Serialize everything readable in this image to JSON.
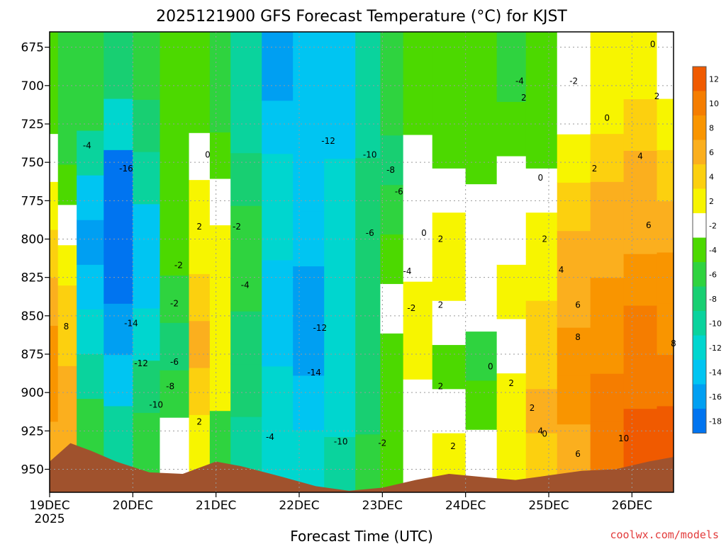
{
  "chart_data": {
    "type": "heatmap",
    "title": "2025121900 GFS Forecast Temperature (°C) for KJST",
    "xlabel": "Forecast Time (UTC)",
    "ylabel": "",
    "x_ticks": [
      "19DEC",
      "20DEC",
      "21DEC",
      "22DEC",
      "23DEC",
      "24DEC",
      "25DEC",
      "26DEC"
    ],
    "x_year": "2025",
    "y_ticks": [
      675,
      700,
      725,
      750,
      775,
      800,
      825,
      850,
      875,
      900,
      925,
      950
    ],
    "ylim": [
      965,
      665
    ],
    "xlim_days": [
      0,
      7.5
    ],
    "grid": true,
    "colorbar": {
      "labels": [
        "12",
        "10",
        "8",
        "6",
        "4",
        "2",
        "-2",
        "-4",
        "-6",
        "-8",
        "-10",
        "-12",
        "-14",
        "-16",
        "-18"
      ],
      "colors": [
        "#f05a00",
        "#f57d00",
        "#f99500",
        "#fbaf1e",
        "#fcd00f",
        "#f7f500",
        "#ffffff",
        "#4cd900",
        "#2fd33f",
        "#18cf72",
        "#0ad39d",
        "#00d6cf",
        "#00c5f2",
        "#009ff2",
        "#0074f0"
      ]
    },
    "columns": [
      {
        "x": 0.0,
        "bounds": [
          950,
          700
        ],
        "values": [
          6,
          8,
          8,
          6,
          4,
          2,
          0,
          -2
        ]
      },
      {
        "x": 0.2,
        "bounds": [
          935,
          725
        ],
        "values": [
          6,
          6,
          4,
          4,
          2,
          0,
          -2,
          -4
        ]
      },
      {
        "x": 0.45,
        "bounds": [
          933,
          700
        ],
        "values": [
          -4,
          -8,
          -10,
          -12,
          -14,
          -12,
          -8,
          -4
        ]
      },
      {
        "x": 0.85,
        "bounds": [
          942,
          675
        ],
        "values": [
          -8,
          -12,
          -14,
          -16,
          -18,
          -16,
          -10,
          -6
        ]
      },
      {
        "x": 1.15,
        "bounds": [
          947,
          675
        ],
        "values": [
          -4,
          -6,
          -10,
          -12,
          -12,
          -8,
          -6,
          -4
        ]
      },
      {
        "x": 1.5,
        "bounds": [
          947,
          700
        ],
        "values": [
          0,
          -4,
          -6,
          -4,
          -2,
          -2,
          -2,
          -2
        ]
      },
      {
        "x": 1.85,
        "bounds": [
          945,
          700
        ],
        "values": [
          2,
          4,
          6,
          4,
          2,
          2,
          0,
          -2
        ]
      },
      {
        "x": 2.0,
        "bounds": [
          942,
          700
        ],
        "values": [
          -4,
          2,
          2,
          2,
          2,
          0,
          -2,
          -4
        ]
      },
      {
        "x": 2.35,
        "bounds": [
          950,
          675
        ],
        "values": [
          -8,
          -6,
          -6,
          -4,
          -4,
          -6,
          -8,
          -8
        ]
      },
      {
        "x": 2.75,
        "bounds": [
          952,
          675
        ],
        "values": [
          -10,
          -10,
          -12,
          -12,
          -10,
          -10,
          -12,
          -14
        ]
      },
      {
        "x": 3.1,
        "bounds": [
          960,
          675
        ],
        "values": [
          -10,
          -12,
          -14,
          -14,
          -12,
          -12,
          -12,
          -12
        ]
      },
      {
        "x": 3.5,
        "bounds": [
          965,
          675
        ],
        "values": [
          -8,
          -10,
          -10,
          -10,
          -10,
          -10,
          -12,
          -12
        ]
      },
      {
        "x": 3.85,
        "bounds": [
          963,
          675
        ],
        "values": [
          -4,
          -6,
          -6,
          -6,
          -6,
          -6,
          -8,
          -8
        ]
      },
      {
        "x": 4.1,
        "bounds": [
          958,
          700
        ],
        "values": [
          -2,
          -2,
          -2,
          0,
          -2,
          -4,
          -6,
          -4
        ]
      },
      {
        "x": 4.4,
        "bounds": [
          955,
          700
        ],
        "values": [
          0,
          0,
          2,
          2,
          0,
          0,
          0,
          -2
        ]
      },
      {
        "x": 4.8,
        "bounds": [
          955,
          725
        ],
        "values": [
          2,
          0,
          -2,
          0,
          2,
          2,
          0,
          -2
        ]
      },
      {
        "x": 5.2,
        "bounds": [
          956,
          700
        ],
        "values": [
          0,
          -2,
          -4,
          0,
          0,
          0,
          -2,
          -2
        ]
      },
      {
        "x": 5.55,
        "bounds": [
          958,
          675
        ],
        "values": [
          2,
          2,
          0,
          2,
          0,
          0,
          -2,
          -4
        ]
      },
      {
        "x": 5.9,
        "bounds": [
          955,
          725
        ],
        "values": [
          4,
          6,
          4,
          4,
          2,
          2,
          0,
          -2
        ]
      },
      {
        "x": 6.3,
        "bounds": [
          952,
          700
        ],
        "values": [
          6,
          8,
          8,
          6,
          6,
          4,
          2,
          0
        ]
      },
      {
        "x": 6.7,
        "bounds": [
          950,
          700
        ],
        "values": [
          10,
          10,
          8,
          8,
          6,
          6,
          4,
          2
        ]
      },
      {
        "x": 7.1,
        "bounds": [
          944,
          675
        ],
        "values": [
          12,
          10,
          10,
          8,
          6,
          6,
          4,
          2
        ]
      },
      {
        "x": 7.5,
        "bounds": [
          942,
          675
        ],
        "values": [
          12,
          10,
          8,
          8,
          6,
          4,
          2,
          0
        ]
      }
    ],
    "terrain": [
      [
        0.0,
        945
      ],
      [
        0.25,
        933
      ],
      [
        0.5,
        938
      ],
      [
        0.8,
        945
      ],
      [
        1.2,
        952
      ],
      [
        1.6,
        953
      ],
      [
        2.0,
        945
      ],
      [
        2.3,
        948
      ],
      [
        2.8,
        955
      ],
      [
        3.2,
        961
      ],
      [
        3.6,
        964
      ],
      [
        4.0,
        962
      ],
      [
        4.4,
        957
      ],
      [
        4.8,
        953
      ],
      [
        5.2,
        955
      ],
      [
        5.6,
        957
      ],
      [
        6.0,
        954
      ],
      [
        6.4,
        951
      ],
      [
        6.8,
        950
      ],
      [
        7.2,
        945
      ],
      [
        7.5,
        942
      ]
    ],
    "contour_labels": [
      {
        "text": "-16",
        "x": 0.92,
        "p": 754
      },
      {
        "text": "-14",
        "x": 0.98,
        "p": 855
      },
      {
        "text": "-12",
        "x": 1.1,
        "p": 881
      },
      {
        "text": "-10",
        "x": 1.28,
        "p": 908
      },
      {
        "text": "-8",
        "x": 1.45,
        "p": 896
      },
      {
        "text": "-6",
        "x": 1.5,
        "p": 880
      },
      {
        "text": "-2",
        "x": 1.5,
        "p": 842
      },
      {
        "text": "-2",
        "x": 1.55,
        "p": 817
      },
      {
        "text": "-4",
        "x": 0.45,
        "p": 739
      },
      {
        "text": "8",
        "x": 0.2,
        "p": 857
      },
      {
        "text": "2",
        "x": 1.8,
        "p": 792
      },
      {
        "text": "0",
        "x": 1.9,
        "p": 745
      },
      {
        "text": "2",
        "x": 1.8,
        "p": 919
      },
      {
        "text": "-2",
        "x": 2.25,
        "p": 792
      },
      {
        "text": "-4",
        "x": 2.35,
        "p": 830
      },
      {
        "text": "-4",
        "x": 2.65,
        "p": 929
      },
      {
        "text": "-12",
        "x": 3.35,
        "p": 736
      },
      {
        "text": "-12",
        "x": 3.25,
        "p": 858
      },
      {
        "text": "-14",
        "x": 3.18,
        "p": 887
      },
      {
        "text": "-10",
        "x": 3.5,
        "p": 932
      },
      {
        "text": "-10",
        "x": 3.85,
        "p": 745
      },
      {
        "text": "-8",
        "x": 4.1,
        "p": 755
      },
      {
        "text": "-6",
        "x": 4.2,
        "p": 769
      },
      {
        "text": "-6",
        "x": 3.85,
        "p": 796
      },
      {
        "text": "-4",
        "x": 4.3,
        "p": 821
      },
      {
        "text": "-2",
        "x": 4.35,
        "p": 845
      },
      {
        "text": "-2",
        "x": 4.0,
        "p": 933
      },
      {
        "text": "0",
        "x": 4.5,
        "p": 796
      },
      {
        "text": "2",
        "x": 4.7,
        "p": 800
      },
      {
        "text": "2",
        "x": 4.7,
        "p": 843
      },
      {
        "text": "2",
        "x": 4.7,
        "p": 896
      },
      {
        "text": "2",
        "x": 4.85,
        "p": 935
      },
      {
        "text": "0",
        "x": 5.3,
        "p": 883
      },
      {
        "text": "2",
        "x": 5.55,
        "p": 894
      },
      {
        "text": "2",
        "x": 5.8,
        "p": 910
      },
      {
        "text": "0",
        "x": 5.95,
        "p": 927
      },
      {
        "text": "4",
        "x": 5.9,
        "p": 925
      },
      {
        "text": "2",
        "x": 5.7,
        "p": 708
      },
      {
        "text": "-4",
        "x": 5.65,
        "p": 697
      },
      {
        "text": "-2",
        "x": 6.3,
        "p": 697
      },
      {
        "text": "0",
        "x": 5.9,
        "p": 760
      },
      {
        "text": "2",
        "x": 5.95,
        "p": 800
      },
      {
        "text": "4",
        "x": 6.15,
        "p": 820
      },
      {
        "text": "6",
        "x": 6.35,
        "p": 843
      },
      {
        "text": "8",
        "x": 6.35,
        "p": 864
      },
      {
        "text": "6",
        "x": 6.35,
        "p": 940
      },
      {
        "text": "10",
        "x": 6.9,
        "p": 930
      },
      {
        "text": "0",
        "x": 6.7,
        "p": 721
      },
      {
        "text": "2",
        "x": 6.55,
        "p": 754
      },
      {
        "text": "4",
        "x": 7.1,
        "p": 746
      },
      {
        "text": "6",
        "x": 7.2,
        "p": 791
      },
      {
        "text": "2",
        "x": 7.3,
        "p": 707
      },
      {
        "text": "0",
        "x": 7.25,
        "p": 673
      },
      {
        "text": "8",
        "x": 7.5,
        "p": 868
      }
    ],
    "watermark": "coolwx.com/models"
  }
}
